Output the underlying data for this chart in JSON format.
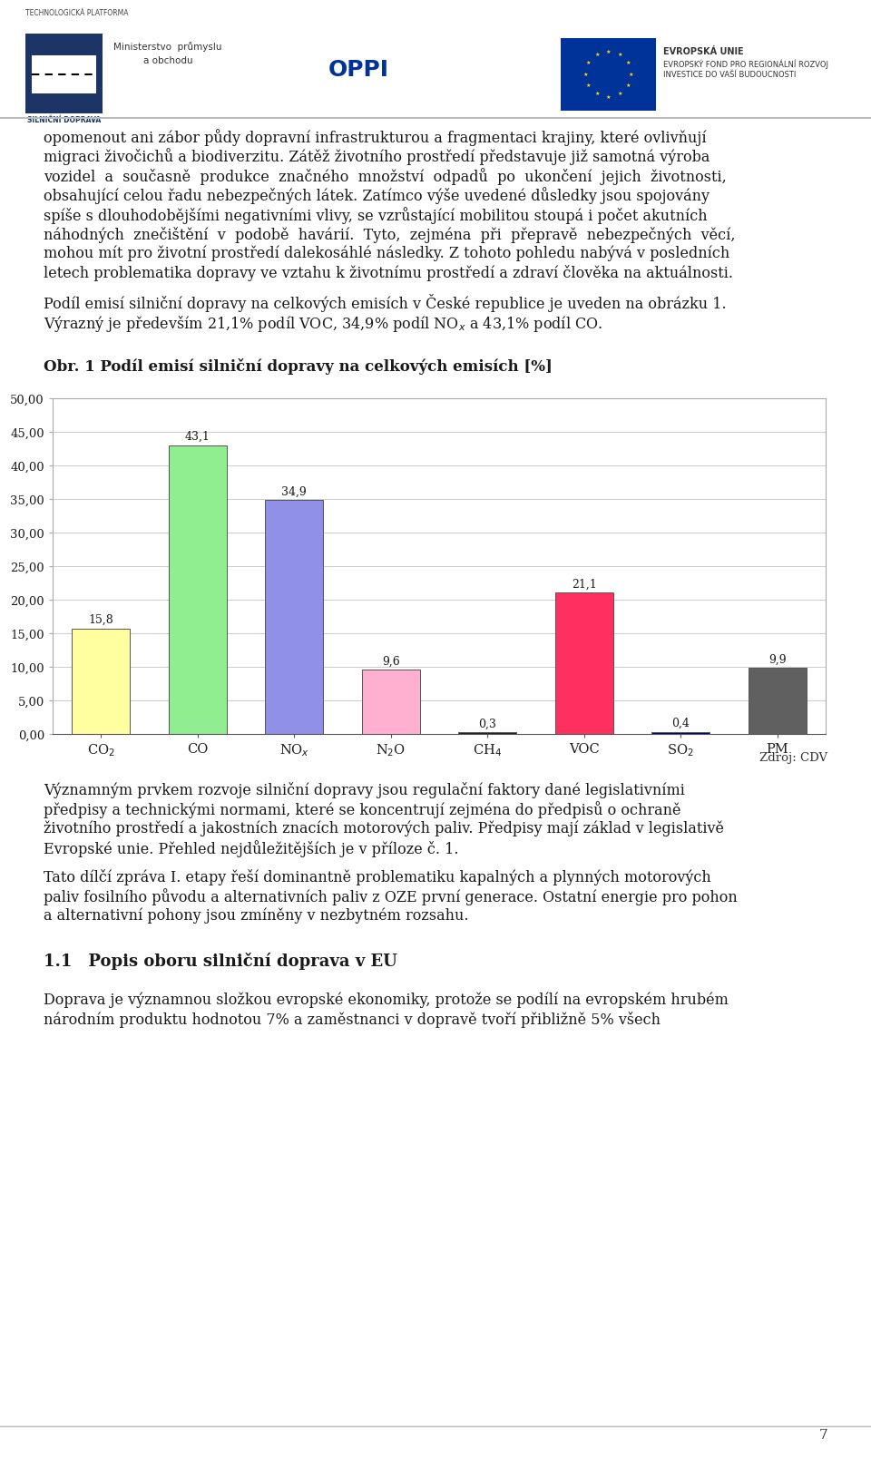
{
  "categories": [
    "CO$_2$",
    "CO",
    "NO$_x$",
    "N$_2$O",
    "CH$_4$",
    "VOC",
    "SO$_2$",
    "PM"
  ],
  "cat_labels": [
    "CO₂",
    "CO",
    "NOₓ",
    "N₂O",
    "CH₄",
    "VOC",
    "SO₂",
    "PM"
  ],
  "values": [
    15.8,
    43.1,
    34.9,
    9.6,
    0.3,
    21.1,
    0.4,
    9.9
  ],
  "bar_colors": [
    "#ffffa0",
    "#90ee90",
    "#9090e8",
    "#ffb0d0",
    "#202020",
    "#ff3060",
    "#000080",
    "#606060"
  ],
  "chart_title": "Obr. 1 Podíl emisí silniční dopravy na celkových emisích [%]",
  "ylim": [
    0,
    50
  ],
  "ytick_vals": [
    0.0,
    5.0,
    10.0,
    15.0,
    20.0,
    25.0,
    30.0,
    35.0,
    40.0,
    45.0,
    50.0
  ],
  "source_text": "Zdroj: CDV",
  "background_color": "#ffffff",
  "text_color": "#1a1a1a",
  "page_number": "7",
  "header_small": "TECHNOLOGICKÁ PLATFORMA",
  "header_logo_text": "SILNIČNÍ DOPRAVA",
  "eu_line1": "EVROPSKÁ UNIE",
  "eu_line2": "EVROPSKÝ FOND PRO REGIONÁLNÍ ROZVOJ",
  "eu_line3": "INVESTICE DO VAŠÍ BUDOUCNOSTI",
  "para1_justified": true,
  "para1": "opomenout ani zábor půdy dopravní infrastrukturou a fragmentaci krajiny, které ovlivňují migraci živočichů a biodiverzitu. Zátěž životního prostředí představuje již samotná výroba vozidel a současně produkce značného množství odpadů po ukončení jejich životních, obsahující celou řadu nebezpečných látek. Zatímco výše uvedené důsledky jsou spojovány spíše s dlouhodobejšími negativními vlivy, se vzrůstající mobilitou stoupá i počet akutních náhodných znečištění v podobě havárií. Tyto, zejména při přepravě nebezpečných věcí, mohou mít pro životní prostředí dalekoSáhlé následky. Z tohoto pohledu nabývá v posledních letech problematika dopravy ve vztahu k životnímu prostředí a zdraví člověka na aktuálnosti.",
  "para2": "Podíl emisí silniční dopravy na celkových emisích v České republice je uveden na obrázku 1. Výrazný je především 21,1% podíl VOC, 34,9% podíl NOₓ a 43,1% podíl CO.",
  "para3": "Významným prvkem rozvoje silniční dopravy jsou regulační faktory dané legislativními předpisy a technickými normami, které se koncentrují zejména do předpisů o ochraně životního prostředí a jakostních znacích motorových paliv. Předpisy mají základ v legislativě Evropské unie. Přehled nejdůležitějších je v příloze č. 1.",
  "para4": "Tato dílčí zpráva I. etapy řeší dominantně problematiku kapalných a plynných motorových paliv fossilního původu a alternativních paliv z OZE první generace. Ostatní energie pro pohon a alternativní pohony jsou zmíněny v nezbytném rozsahu.",
  "section_title": "1.1 Popis oboru silniční doprava v EU",
  "para5": "Doprava je významnou složkou evropské ekonomiky, protože se podílí na evropském hrubém národním produktu hodnotou 7% a zaměstnanci v dopravě tvoří přibližně 5% všech"
}
